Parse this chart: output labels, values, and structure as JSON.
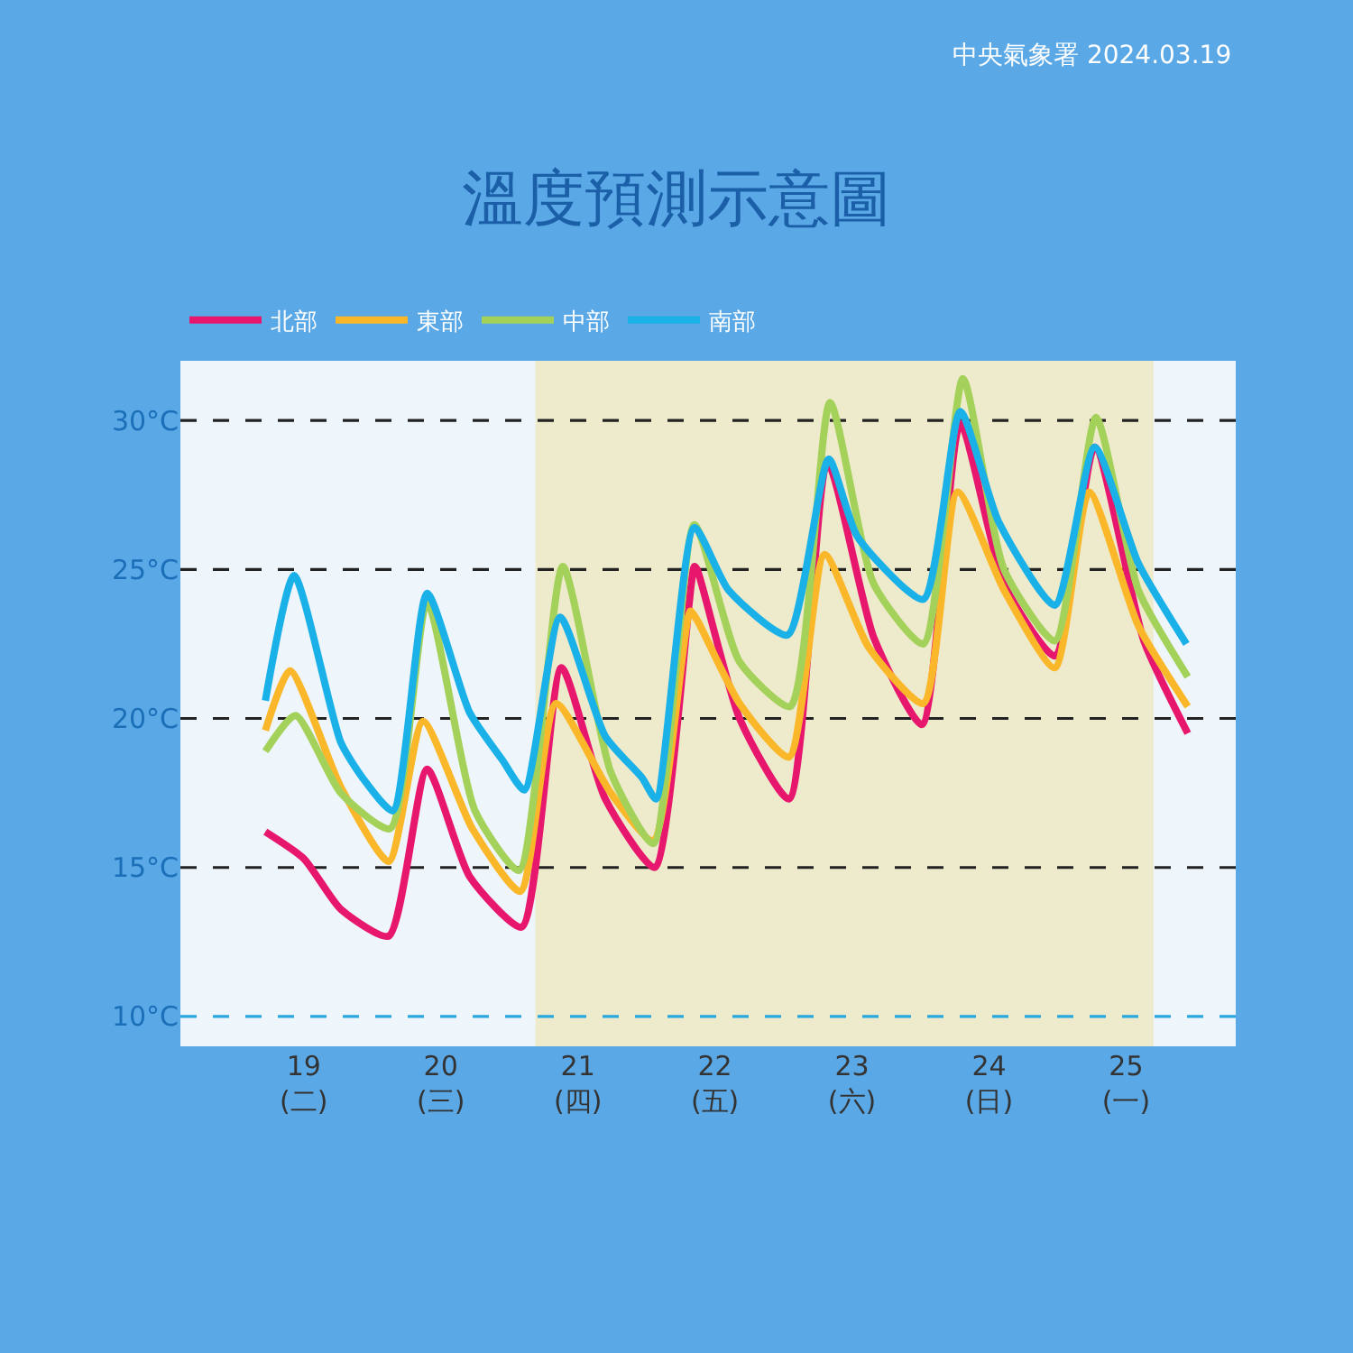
{
  "chart_data": {
    "type": "line",
    "title": "溫度預測示意圖",
    "annotations": [
      "中央氣象署 2024.03.19"
    ],
    "legend": "top left",
    "grid": false,
    "marker": "none",
    "line_style": "solid",
    "xlim": [
      18.1,
      25.8
    ],
    "xticks": [
      {
        "value": 19,
        "label": "19\n(二)"
      },
      {
        "value": 20,
        "label": "20\n(三)"
      },
      {
        "value": 21,
        "label": "21\n(四)"
      },
      {
        "value": 22,
        "label": "22\n(五)"
      },
      {
        "value": 23,
        "label": "23\n(六)"
      },
      {
        "value": 24,
        "label": "24\n(日)"
      },
      {
        "value": 25,
        "label": "25\n(一)"
      }
    ],
    "ylim": [
      9,
      32
    ],
    "yticks": [
      {
        "value": 10,
        "label": "10°C"
      },
      {
        "value": 15,
        "label": "15°C"
      },
      {
        "value": 20,
        "label": "20°C"
      },
      {
        "value": 25,
        "label": "25°C"
      },
      {
        "value": 30,
        "label": "30°C"
      }
    ],
    "bands": [
      {
        "axis": "x",
        "from": 20.69,
        "to": 25.2,
        "color": "#eeeacc"
      }
    ],
    "ref_lines": [
      {
        "axis": "y",
        "value": 30,
        "color": "#222222",
        "line_style": "dashed"
      },
      {
        "axis": "y",
        "value": 25,
        "color": "#222222",
        "line_style": "dashed"
      },
      {
        "axis": "y",
        "value": 20,
        "color": "#222222",
        "line_style": "dashed"
      },
      {
        "axis": "y",
        "value": 15,
        "color": "#222222",
        "line_style": "dashed"
      },
      {
        "axis": "y",
        "value": 10,
        "color": "#29a8e0",
        "line_style": "dashed"
      }
    ],
    "series": [
      {
        "name": "北部",
        "color": "#e8176e",
        "x": [
          18.72,
          19.0,
          19.27,
          19.62,
          19.9,
          20.21,
          20.59,
          20.88,
          21.2,
          21.56,
          21.85,
          21.87,
          22.18,
          22.54,
          22.82,
          23.16,
          23.51,
          23.79,
          24.11,
          24.48,
          24.77,
          25.13,
          25.45
        ],
        "values": [
          16.2,
          15.3,
          13.6,
          12.7,
          18.3,
          14.7,
          13.0,
          21.7,
          17.3,
          15.0,
          25.1,
          25.0,
          20.0,
          17.3,
          28.6,
          22.7,
          19.8,
          29.9,
          24.5,
          22.1,
          29.1,
          22.6,
          19.5
        ]
      },
      {
        "name": "東部",
        "color": "#fbb72a",
        "x": [
          18.72,
          18.9,
          19.27,
          19.62,
          19.87,
          20.23,
          20.58,
          20.84,
          21.24,
          21.55,
          21.82,
          21.87,
          22.18,
          22.54,
          22.8,
          23.12,
          23.52,
          23.77,
          24.11,
          24.48,
          24.73,
          25.09,
          25.45
        ],
        "values": [
          19.6,
          21.6,
          17.7,
          15.2,
          19.9,
          16.3,
          14.2,
          20.5,
          17.5,
          15.9,
          23.6,
          23.3,
          20.5,
          18.7,
          25.5,
          22.4,
          20.5,
          27.6,
          24.3,
          21.7,
          27.6,
          23.1,
          20.4
        ]
      },
      {
        "name": "中部",
        "color": "#a4d15a",
        "x": [
          18.72,
          18.94,
          19.27,
          19.63,
          19.9,
          20.25,
          20.57,
          20.89,
          21.24,
          21.55,
          21.85,
          22.18,
          22.55,
          22.84,
          23.16,
          23.52,
          23.81,
          24.11,
          24.48,
          24.78,
          25.09,
          25.45
        ],
        "values": [
          18.9,
          20.1,
          17.5,
          16.3,
          23.9,
          16.9,
          14.9,
          25.1,
          18.2,
          15.8,
          26.5,
          21.9,
          20.4,
          30.6,
          24.5,
          22.5,
          31.4,
          25.0,
          22.6,
          30.1,
          24.3,
          21.4
        ]
      },
      {
        "name": "南部",
        "color": "#1ab0e8",
        "x": [
          18.72,
          18.93,
          19.27,
          19.43,
          19.65,
          19.9,
          20.21,
          20.45,
          20.61,
          20.87,
          21.2,
          21.47,
          21.57,
          21.85,
          22.1,
          22.53,
          22.83,
          23.04,
          23.52,
          23.79,
          24.07,
          24.48,
          24.77,
          25.09,
          25.44
        ],
        "values": [
          20.6,
          24.8,
          19.2,
          18.0,
          16.9,
          24.2,
          20.2,
          18.6,
          17.6,
          23.4,
          19.4,
          18.0,
          17.3,
          26.4,
          24.3,
          22.8,
          28.7,
          26.1,
          24.0,
          30.3,
          26.6,
          23.8,
          29.1,
          25.2,
          22.5
        ]
      }
    ]
  }
}
